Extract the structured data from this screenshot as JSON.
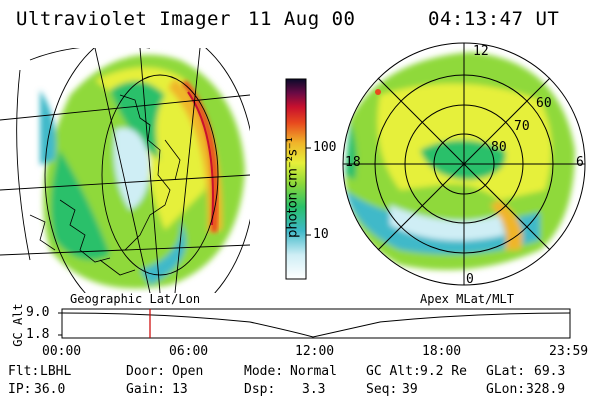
{
  "header": {
    "title": "Ultraviolet Imager",
    "date": "11 Aug 00",
    "time": "04:13:47 UT"
  },
  "colorbar": {
    "label": "photon cm⁻²s⁻¹",
    "ticks": [
      "100",
      "10"
    ],
    "scale": "log"
  },
  "polar_plot": {
    "mlt_labels": [
      "12",
      "18",
      "6",
      "0"
    ],
    "mlat_labels": [
      "60",
      "70",
      "80"
    ]
  },
  "panel_captions": {
    "left": "Geographic Lat/Lon",
    "right": "Apex MLat/MLT"
  },
  "altitude_plot": {
    "ylabel": "GC Alt",
    "y_ticks": [
      "9.0",
      "1.8"
    ],
    "x_ticks": [
      "00:00",
      "06:00",
      "12:00",
      "18:00",
      "23:59"
    ],
    "current_time_marker": "04:13"
  },
  "info": {
    "flt_label": "Flt:",
    "flt_value": "LBHL",
    "ip_label": "IP:",
    "ip_value": "36.0",
    "door_label": "Door:",
    "door_value": "Open",
    "gain_label": "Gain:",
    "gain_value": "13",
    "mode_label": "Mode:",
    "mode_value": "Normal",
    "dsp_label": "Dsp:",
    "dsp_value": "3.3",
    "gcalt_label": "GC Alt:",
    "gcalt_value": "9.2 Re",
    "seq_label": "Seq:",
    "seq_value": "39",
    "glat_label": "GLat:",
    "glat_value": "69.3",
    "glon_label": "GLon:",
    "glon_value": "328.9"
  },
  "colors": {
    "marker": "#cc0000",
    "colorbar_stops": [
      "#ffffff",
      "#cfeef5",
      "#3fb9c9",
      "#29c06a",
      "#8fd93a",
      "#e6f03a",
      "#f0b52a",
      "#e84a1e",
      "#c8102e",
      "#6a0a45",
      "#0a0a2a"
    ]
  }
}
